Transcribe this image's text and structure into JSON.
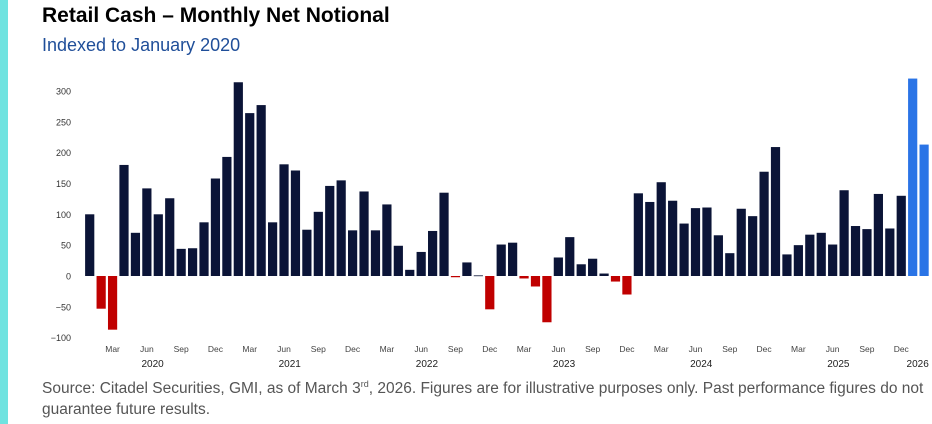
{
  "title": "Retail Cash – Monthly Net Notional",
  "subtitle": "Indexed to January 2020",
  "footnote": {
    "before": "Source: Citadel Securities, GMI, as of March 3",
    "sup": "rd",
    "after": ", 2026. Figures are for illustrative purposes only. Past performance figures do not guarantee future results."
  },
  "colors": {
    "positive": "#0b1437",
    "negative": "#c00000",
    "highlight": "#2a74e6",
    "accent": "#6fe3e0",
    "subtitle": "#1f4e99"
  },
  "chart_data": {
    "type": "bar",
    "title": "Retail Cash – Monthly Net Notional",
    "subtitle": "Indexed to January 2020",
    "ylim": [
      -110,
      325
    ],
    "yticks": [
      -100,
      -50,
      0,
      50,
      100,
      150,
      200,
      250,
      300
    ],
    "month_ticks": [
      "Mar",
      "Jun",
      "Sep",
      "Dec"
    ],
    "year_labels": [
      "2020",
      "2021",
      "2022",
      "2023",
      "2024",
      "2025",
      "2026"
    ],
    "highlighted_months": [
      "2026-01",
      "2026-02"
    ],
    "series": [
      {
        "name": "Monthly Net Notional",
        "points": [
          {
            "month": "2020-01",
            "value": 100
          },
          {
            "month": "2020-02",
            "value": -53
          },
          {
            "month": "2020-03",
            "value": -87
          },
          {
            "month": "2020-04",
            "value": 180
          },
          {
            "month": "2020-05",
            "value": 70
          },
          {
            "month": "2020-06",
            "value": 142
          },
          {
            "month": "2020-07",
            "value": 100
          },
          {
            "month": "2020-08",
            "value": 126
          },
          {
            "month": "2020-09",
            "value": 44
          },
          {
            "month": "2020-10",
            "value": 45
          },
          {
            "month": "2020-11",
            "value": 87
          },
          {
            "month": "2020-12",
            "value": 158
          },
          {
            "month": "2021-01",
            "value": 193
          },
          {
            "month": "2021-02",
            "value": 314
          },
          {
            "month": "2021-03",
            "value": 264
          },
          {
            "month": "2021-04",
            "value": 277
          },
          {
            "month": "2021-05",
            "value": 87
          },
          {
            "month": "2021-06",
            "value": 181
          },
          {
            "month": "2021-07",
            "value": 171
          },
          {
            "month": "2021-08",
            "value": 75
          },
          {
            "month": "2021-09",
            "value": 104
          },
          {
            "month": "2021-10",
            "value": 146
          },
          {
            "month": "2021-11",
            "value": 155
          },
          {
            "month": "2021-12",
            "value": 74
          },
          {
            "month": "2022-01",
            "value": 137
          },
          {
            "month": "2022-02",
            "value": 74
          },
          {
            "month": "2022-03",
            "value": 116
          },
          {
            "month": "2022-04",
            "value": 49
          },
          {
            "month": "2022-05",
            "value": 10
          },
          {
            "month": "2022-06",
            "value": 39
          },
          {
            "month": "2022-07",
            "value": 73
          },
          {
            "month": "2022-08",
            "value": 135
          },
          {
            "month": "2022-09",
            "value": -2
          },
          {
            "month": "2022-10",
            "value": 22
          },
          {
            "month": "2022-11",
            "value": 1
          },
          {
            "month": "2022-12",
            "value": -54
          },
          {
            "month": "2023-01",
            "value": 51
          },
          {
            "month": "2023-02",
            "value": 54
          },
          {
            "month": "2023-03",
            "value": -4
          },
          {
            "month": "2023-04",
            "value": -17
          },
          {
            "month": "2023-05",
            "value": -75
          },
          {
            "month": "2023-06",
            "value": 30
          },
          {
            "month": "2023-07",
            "value": 63
          },
          {
            "month": "2023-08",
            "value": 19
          },
          {
            "month": "2023-09",
            "value": 28
          },
          {
            "month": "2023-10",
            "value": 4
          },
          {
            "month": "2023-11",
            "value": -9
          },
          {
            "month": "2023-12",
            "value": -30
          },
          {
            "month": "2024-01",
            "value": 134
          },
          {
            "month": "2024-02",
            "value": 120
          },
          {
            "month": "2024-03",
            "value": 152
          },
          {
            "month": "2024-04",
            "value": 122
          },
          {
            "month": "2024-05",
            "value": 85
          },
          {
            "month": "2024-06",
            "value": 110
          },
          {
            "month": "2024-07",
            "value": 111
          },
          {
            "month": "2024-08",
            "value": 66
          },
          {
            "month": "2024-09",
            "value": 37
          },
          {
            "month": "2024-10",
            "value": 109
          },
          {
            "month": "2024-11",
            "value": 97
          },
          {
            "month": "2024-12",
            "value": 169
          },
          {
            "month": "2025-01",
            "value": 209
          },
          {
            "month": "2025-02",
            "value": 35
          },
          {
            "month": "2025-03",
            "value": 50
          },
          {
            "month": "2025-04",
            "value": 67
          },
          {
            "month": "2025-05",
            "value": 70
          },
          {
            "month": "2025-06",
            "value": 51
          },
          {
            "month": "2025-07",
            "value": 139
          },
          {
            "month": "2025-08",
            "value": 81
          },
          {
            "month": "2025-09",
            "value": 76
          },
          {
            "month": "2025-10",
            "value": 133
          },
          {
            "month": "2025-11",
            "value": 77
          },
          {
            "month": "2025-12",
            "value": 130
          },
          {
            "month": "2026-01",
            "value": 320
          },
          {
            "month": "2026-02",
            "value": 213
          }
        ]
      }
    ]
  }
}
